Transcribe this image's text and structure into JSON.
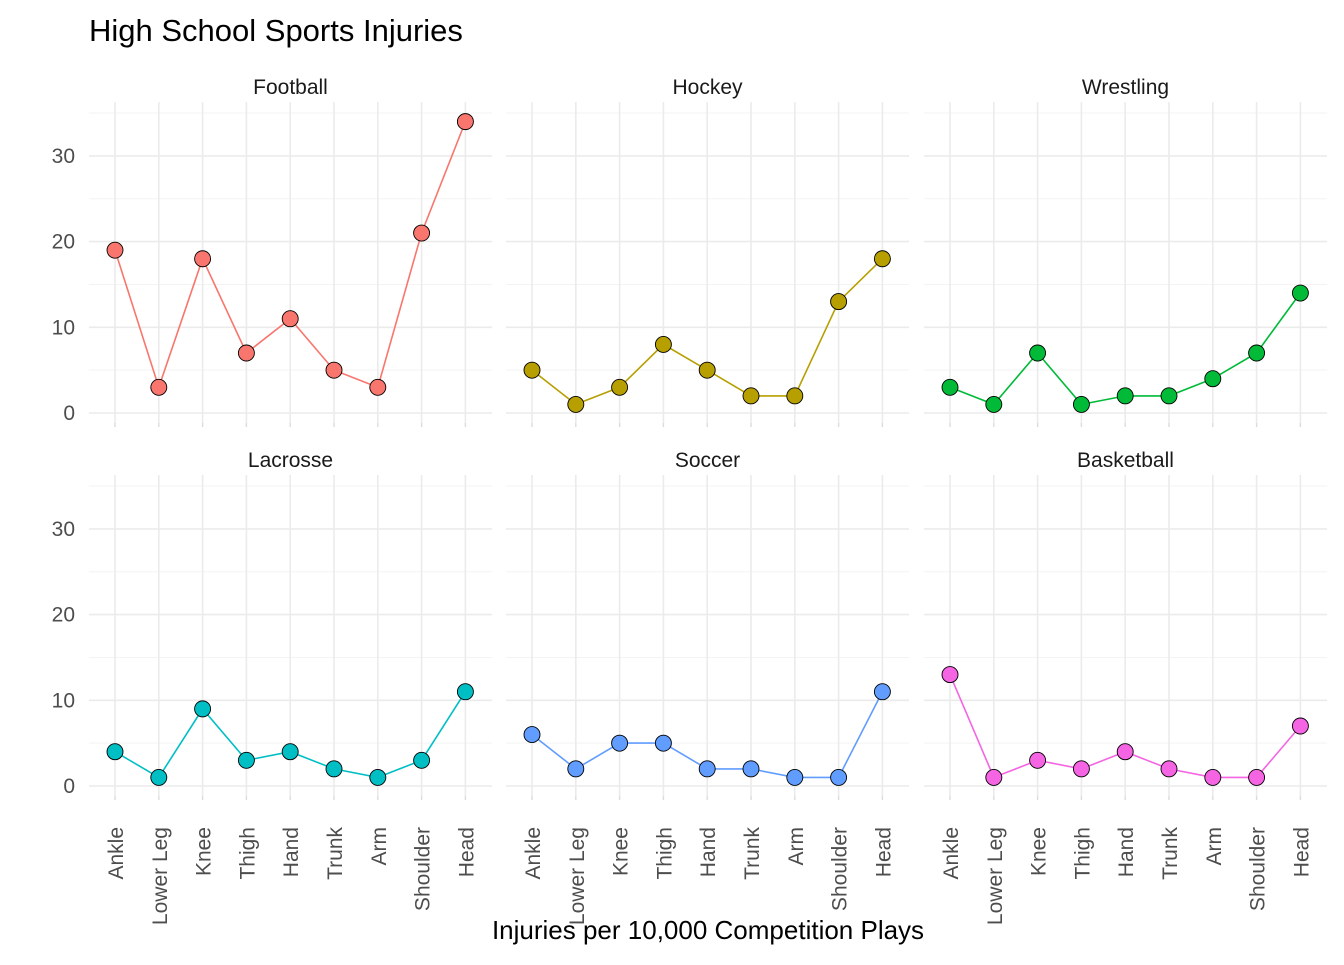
{
  "chart_data": {
    "type": "line",
    "title": "High School Sports Injuries",
    "xlabel": "Injuries per 10,000 Competition Plays",
    "ylabel": "",
    "ylim": [
      0,
      35
    ],
    "yticks": [
      0,
      10,
      20,
      30
    ],
    "grid": true,
    "categories": [
      "Ankle",
      "Lower Leg",
      "Knee",
      "Thigh",
      "Hand",
      "Trunk",
      "Arm",
      "Shoulder",
      "Head"
    ],
    "series": [
      {
        "name": "Football",
        "color": "#F8766D",
        "values": [
          19,
          3,
          18,
          7,
          11,
          5,
          3,
          21,
          34
        ]
      },
      {
        "name": "Hockey",
        "color": "#B79F00",
        "values": [
          5,
          1,
          3,
          8,
          5,
          2,
          2,
          13,
          18
        ]
      },
      {
        "name": "Wrestling",
        "color": "#00BA38",
        "values": [
          3,
          1,
          7,
          1,
          2,
          2,
          4,
          7,
          14
        ]
      },
      {
        "name": "Lacrosse",
        "color": "#00BFC4",
        "values": [
          4,
          1,
          9,
          3,
          4,
          2,
          1,
          3,
          11
        ]
      },
      {
        "name": "Soccer",
        "color": "#619CFF",
        "values": [
          6,
          2,
          5,
          5,
          2,
          2,
          1,
          1,
          11
        ]
      },
      {
        "name": "Basketball",
        "color": "#F564E3",
        "values": [
          13,
          1,
          3,
          2,
          4,
          2,
          1,
          1,
          7
        ]
      }
    ]
  }
}
